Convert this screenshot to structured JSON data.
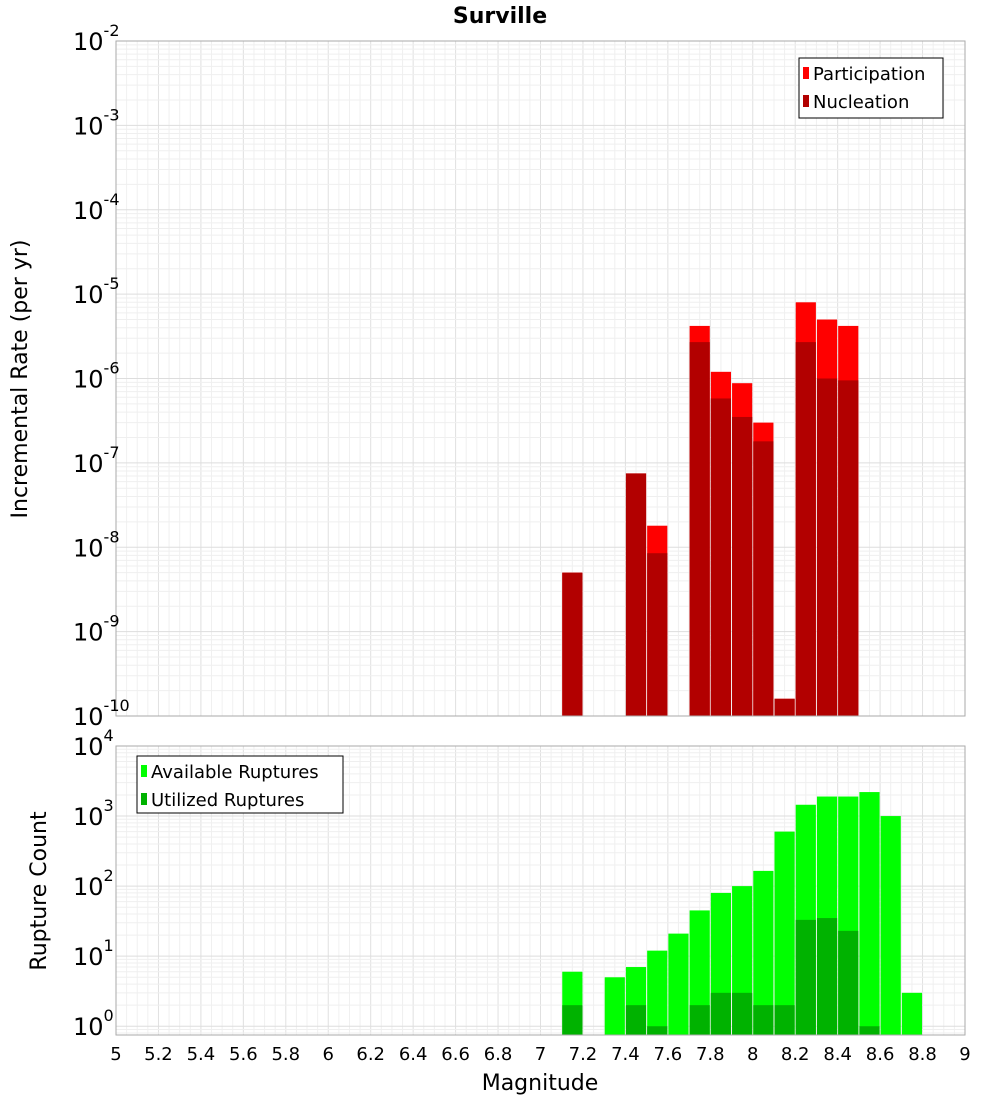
{
  "chart_data": [
    {
      "type": "bar",
      "title": "Surville",
      "xlabel": "",
      "ylabel": "Incremental Rate (per yr)",
      "yscale": "log",
      "ylim": [
        1e-10,
        0.01
      ],
      "xlim": [
        5,
        9
      ],
      "grid": true,
      "legend_position": "top-right",
      "ytick_exponents": [
        "-10",
        "-9",
        "-8",
        "-7",
        "-6",
        "-5",
        "-4",
        "-3",
        "-2"
      ],
      "colors": {
        "Participation": "#ff0000",
        "Nucleation": "#b20000"
      },
      "x": [
        7.15,
        7.45,
        7.55,
        7.75,
        7.85,
        7.95,
        8.05,
        8.15,
        8.25,
        8.35,
        8.45
      ],
      "series": [
        {
          "name": "Participation",
          "values": [
            5e-09,
            7.5e-08,
            1.8e-08,
            4.2e-06,
            1.2e-06,
            8.8e-07,
            3e-07,
            1.6e-10,
            8e-06,
            5e-06,
            4.2e-06
          ]
        },
        {
          "name": "Nucleation",
          "values": [
            5e-09,
            7.5e-08,
            8.5e-09,
            2.7e-06,
            5.8e-07,
            3.5e-07,
            1.8e-07,
            1.6e-10,
            2.7e-06,
            1e-06,
            9.5e-07
          ]
        }
      ]
    },
    {
      "type": "bar",
      "title": "",
      "xlabel": "Magnitude",
      "ylabel": "Rupture Count",
      "yscale": "log",
      "ylim": [
        0.75,
        10000
      ],
      "xlim": [
        5,
        9
      ],
      "grid": true,
      "legend_position": "top-left",
      "xticks": [
        "5",
        "5.2",
        "5.4",
        "5.6",
        "5.8",
        "6",
        "6.2",
        "6.4",
        "6.6",
        "6.8",
        "7",
        "7.2",
        "7.4",
        "7.6",
        "7.8",
        "8",
        "8.2",
        "8.4",
        "8.6",
        "8.8",
        "9"
      ],
      "ytick_exponents": [
        "0",
        "1",
        "2",
        "3",
        "4"
      ],
      "colors": {
        "Available Ruptures": "#00ff00",
        "Utilized Ruptures": "#00b200"
      },
      "x": [
        7.15,
        7.35,
        7.45,
        7.55,
        7.65,
        7.75,
        7.85,
        7.95,
        8.05,
        8.15,
        8.25,
        8.35,
        8.45,
        8.55,
        8.65,
        8.75
      ],
      "series": [
        {
          "name": "Available Ruptures",
          "values": [
            6,
            5,
            7,
            12,
            21,
            45,
            80,
            100,
            165,
            600,
            1450,
            1900,
            1900,
            2200,
            1000,
            3
          ]
        },
        {
          "name": "Utilized Ruptures",
          "values": [
            2,
            null,
            2,
            1,
            null,
            2,
            3,
            3,
            2,
            2,
            33,
            35,
            23,
            1,
            null,
            null
          ]
        }
      ]
    }
  ]
}
